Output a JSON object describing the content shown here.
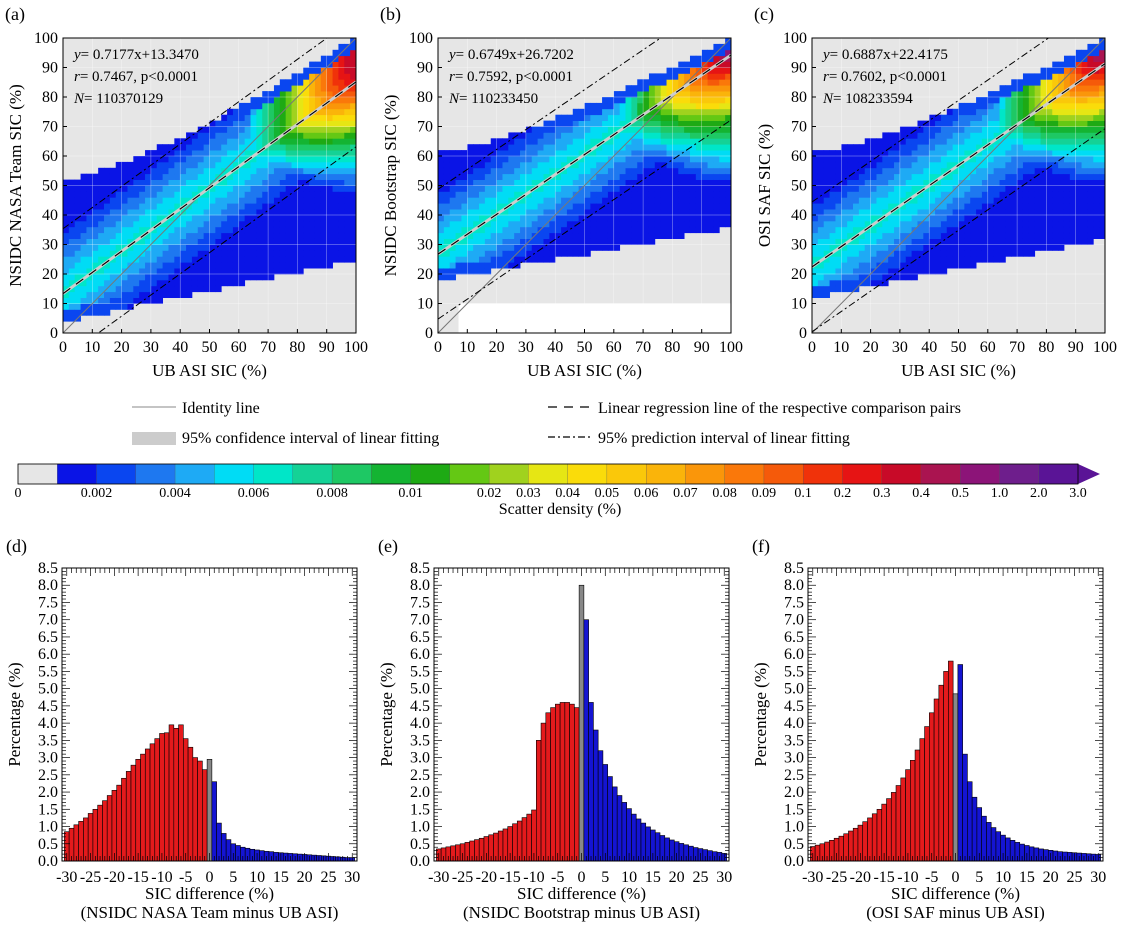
{
  "scatter_panels": [
    {
      "letter": "(a)",
      "ylabel": "NSIDC NASA Team SIC (%)",
      "xlabel": "UB ASI SIC (%)",
      "eq": "y= 0.7177x+13.3470",
      "stat": "r= 0.7467, p<0.0001",
      "n": "N= 110370129"
    },
    {
      "letter": "(b)",
      "ylabel": "NSIDC Bootstrap SIC (%)",
      "xlabel": "UB ASI SIC (%)",
      "eq": "y= 0.6749x+26.7202",
      "stat": "r= 0.7592, p<0.0001",
      "n": "N= 110233450"
    },
    {
      "letter": "(c)",
      "ylabel": "OSI SAF SIC (%)",
      "xlabel": "UB ASI SIC (%)",
      "eq": "y= 0.6887x+22.4175",
      "stat": "r= 0.7602, p<0.0001",
      "n": "N= 108233594"
    }
  ],
  "legend": {
    "identity": "Identity line",
    "ci": "95% confidence interval of linear fitting",
    "reg": "Linear regression line of the respective comparison pairs",
    "pi": "95% prediction interval of linear fitting"
  },
  "colorbar": {
    "title": "Scatter density (%)",
    "labels": [
      "0",
      "0.002",
      "0.004",
      "0.006",
      "0.008",
      "0.01",
      "0.02",
      "0.03",
      "0.04",
      "0.05",
      "0.06",
      "0.07",
      "0.08",
      "0.09",
      "0.1",
      "0.2",
      "0.3",
      "0.4",
      "0.5",
      "1.0",
      "2.0",
      "3.0"
    ],
    "colors": [
      "#e6e6e6",
      "#0a14e6",
      "#0a46f0",
      "#1e78f0",
      "#1eaaf5",
      "#00dcf5",
      "#00e6c8",
      "#14d296",
      "#1ec864",
      "#14b432",
      "#1eaa14",
      "#64c814",
      "#a0d21e",
      "#e6e614",
      "#fadc0a",
      "#fac80a",
      "#fab40a",
      "#fa960a",
      "#fa780a",
      "#f55a0a",
      "#f0320a",
      "#e61414",
      "#c80a28",
      "#aa1450",
      "#8c1478",
      "#6e1e8c",
      "#5a1496"
    ]
  },
  "chart_data": [
    {
      "type": "heatmap",
      "title": "(a)",
      "xlabel": "UB ASI SIC (%)",
      "ylabel": "NSIDC NASA Team SIC (%)",
      "xlim": [
        0,
        100
      ],
      "ylim": [
        0,
        100
      ],
      "ticks": [
        0,
        10,
        20,
        30,
        40,
        50,
        60,
        70,
        80,
        90,
        100
      ],
      "regression": {
        "slope": 0.7177,
        "intercept": 13.347
      },
      "prediction_offset": 22,
      "data_coverage": {
        "top_at_x0": 51,
        "top_at_x100": 100,
        "bottom_at_x0": 3,
        "bottom_at_x100": 24
      },
      "density_peak": [
        97,
        93
      ]
    },
    {
      "type": "heatmap",
      "title": "(b)",
      "xlabel": "UB ASI SIC (%)",
      "ylabel": "NSIDC Bootstrap SIC (%)",
      "xlim": [
        0,
        100
      ],
      "ylim": [
        0,
        100
      ],
      "ticks": [
        0,
        10,
        20,
        30,
        40,
        50,
        60,
        70,
        80,
        90,
        100
      ],
      "regression": {
        "slope": 0.6749,
        "intercept": 26.7202
      },
      "prediction_offset": 22,
      "data_coverage": {
        "top_at_x0": 60,
        "top_at_x100": 100,
        "bottom_at_x0": 17,
        "bottom_at_x100": 35
      },
      "density_peak": [
        97,
        96
      ]
    },
    {
      "type": "heatmap",
      "title": "(c)",
      "xlabel": "UB ASI SIC (%)",
      "ylabel": "OSI SAF SIC (%)",
      "xlim": [
        0,
        100
      ],
      "ylim": [
        0,
        100
      ],
      "ticks": [
        0,
        10,
        20,
        30,
        40,
        50,
        60,
        70,
        80,
        90,
        100
      ],
      "regression": {
        "slope": 0.6887,
        "intercept": 22.4175
      },
      "prediction_offset": 22,
      "data_coverage": {
        "top_at_x0": 60,
        "top_at_x100": 100,
        "bottom_at_x0": 11,
        "bottom_at_x100": 31
      },
      "density_peak": [
        97,
        96
      ]
    },
    {
      "type": "bar",
      "title": "(d)",
      "xlabel": "SIC difference (%)",
      "xlabel2": "(NSIDC NASA Team minus UB ASI)",
      "ylabel": "Percentage (%)",
      "xlim": [
        -31,
        31
      ],
      "ylim": [
        0,
        8.5
      ],
      "xticks": [
        -30,
        -25,
        -20,
        -15,
        -10,
        -5,
        0,
        5,
        10,
        15,
        20,
        25,
        30
      ],
      "yticks": [
        0.0,
        0.5,
        1.0,
        1.5,
        2.0,
        2.5,
        3.0,
        3.5,
        4.0,
        4.5,
        5.0,
        5.5,
        6.0,
        6.5,
        7.0,
        7.5,
        8.0,
        8.5
      ],
      "x": [
        -30,
        -29,
        -28,
        -27,
        -26,
        -25,
        -24,
        -23,
        -22,
        -21,
        -20,
        -19,
        -18,
        -17,
        -16,
        -15,
        -14,
        -13,
        -12,
        -11,
        -10,
        -9,
        -8,
        -7,
        -6,
        -5,
        -4,
        -3,
        -2,
        -1,
        0,
        1,
        2,
        3,
        4,
        5,
        6,
        7,
        8,
        9,
        10,
        11,
        12,
        13,
        14,
        15,
        16,
        17,
        18,
        19,
        20,
        21,
        22,
        23,
        24,
        25,
        26,
        27,
        28,
        29,
        30
      ],
      "values": [
        0.85,
        0.95,
        1.05,
        1.15,
        1.25,
        1.38,
        1.5,
        1.62,
        1.75,
        1.9,
        2.05,
        2.2,
        2.4,
        2.6,
        2.78,
        2.95,
        3.1,
        3.25,
        3.4,
        3.55,
        3.7,
        3.72,
        3.95,
        3.85,
        3.95,
        3.55,
        3.3,
        3.0,
        2.9,
        2.65,
        2.95,
        2.3,
        1.1,
        0.8,
        0.62,
        0.5,
        0.45,
        0.4,
        0.37,
        0.34,
        0.32,
        0.3,
        0.28,
        0.27,
        0.25,
        0.24,
        0.23,
        0.22,
        0.21,
        0.2,
        0.19,
        0.18,
        0.17,
        0.16,
        0.15,
        0.14,
        0.13,
        0.12,
        0.11,
        0.1,
        0.1
      ]
    },
    {
      "type": "bar",
      "title": "(e)",
      "xlabel": "SIC difference (%)",
      "xlabel2": "(NSIDC Bootstrap minus UB ASI)",
      "ylabel": "Percentage (%)",
      "xlim": [
        -31,
        31
      ],
      "ylim": [
        0,
        8.5
      ],
      "xticks": [
        -30,
        -25,
        -20,
        -15,
        -10,
        -5,
        0,
        5,
        10,
        15,
        20,
        25,
        30
      ],
      "yticks": [
        0.0,
        0.5,
        1.0,
        1.5,
        2.0,
        2.5,
        3.0,
        3.5,
        4.0,
        4.5,
        5.0,
        5.5,
        6.0,
        6.5,
        7.0,
        7.5,
        8.0,
        8.5
      ],
      "x": [
        -30,
        -29,
        -28,
        -27,
        -26,
        -25,
        -24,
        -23,
        -22,
        -21,
        -20,
        -19,
        -18,
        -17,
        -16,
        -15,
        -14,
        -13,
        -12,
        -11,
        -10,
        -9,
        -8,
        -7,
        -6,
        -5,
        -4,
        -3,
        -2,
        -1,
        0,
        1,
        2,
        3,
        4,
        5,
        6,
        7,
        8,
        9,
        10,
        11,
        12,
        13,
        14,
        15,
        16,
        17,
        18,
        19,
        20,
        21,
        22,
        23,
        24,
        25,
        26,
        27,
        28,
        29,
        30
      ],
      "values": [
        0.35,
        0.38,
        0.41,
        0.44,
        0.47,
        0.5,
        0.54,
        0.58,
        0.62,
        0.66,
        0.71,
        0.76,
        0.81,
        0.87,
        0.93,
        1.0,
        1.08,
        1.16,
        1.26,
        1.36,
        1.48,
        3.5,
        4.0,
        4.3,
        4.45,
        4.55,
        4.6,
        4.6,
        4.55,
        4.45,
        8.0,
        7.0,
        4.6,
        3.8,
        3.2,
        2.8,
        2.45,
        2.15,
        1.9,
        1.7,
        1.52,
        1.36,
        1.22,
        1.1,
        0.99,
        0.9,
        0.82,
        0.74,
        0.67,
        0.61,
        0.56,
        0.51,
        0.47,
        0.43,
        0.39,
        0.36,
        0.33,
        0.3,
        0.27,
        0.25,
        0.22
      ]
    },
    {
      "type": "bar",
      "title": "(f)",
      "xlabel": "SIC difference (%)",
      "xlabel2": "(OSI SAF minus UB ASI)",
      "ylabel": "Percentage (%)",
      "xlim": [
        -31,
        31
      ],
      "ylim": [
        0,
        8.5
      ],
      "xticks": [
        -30,
        -25,
        -20,
        -15,
        -10,
        -5,
        0,
        5,
        10,
        15,
        20,
        25,
        30
      ],
      "yticks": [
        0.0,
        0.5,
        1.0,
        1.5,
        2.0,
        2.5,
        3.0,
        3.5,
        4.0,
        4.5,
        5.0,
        5.5,
        6.0,
        6.5,
        7.0,
        7.5,
        8.0,
        8.5
      ],
      "x": [
        -30,
        -29,
        -28,
        -27,
        -26,
        -25,
        -24,
        -23,
        -22,
        -21,
        -20,
        -19,
        -18,
        -17,
        -16,
        -15,
        -14,
        -13,
        -12,
        -11,
        -10,
        -9,
        -8,
        -7,
        -6,
        -5,
        -4,
        -3,
        -2,
        -1,
        0,
        1,
        2,
        3,
        4,
        5,
        6,
        7,
        8,
        9,
        10,
        11,
        12,
        13,
        14,
        15,
        16,
        17,
        18,
        19,
        20,
        21,
        22,
        23,
        24,
        25,
        26,
        27,
        28,
        29,
        30
      ],
      "values": [
        0.42,
        0.46,
        0.5,
        0.55,
        0.6,
        0.66,
        0.72,
        0.79,
        0.87,
        0.95,
        1.04,
        1.14,
        1.25,
        1.37,
        1.5,
        1.65,
        1.81,
        1.99,
        2.19,
        2.41,
        2.65,
        2.92,
        3.22,
        3.55,
        3.9,
        4.3,
        4.7,
        5.1,
        5.5,
        5.8,
        4.85,
        5.7,
        3.1,
        2.3,
        1.85,
        1.55,
        1.3,
        1.12,
        0.97,
        0.85,
        0.75,
        0.67,
        0.6,
        0.54,
        0.49,
        0.45,
        0.41,
        0.38,
        0.35,
        0.33,
        0.31,
        0.29,
        0.27,
        0.26,
        0.25,
        0.24,
        0.23,
        0.22,
        0.21,
        0.2,
        0.19
      ]
    }
  ]
}
